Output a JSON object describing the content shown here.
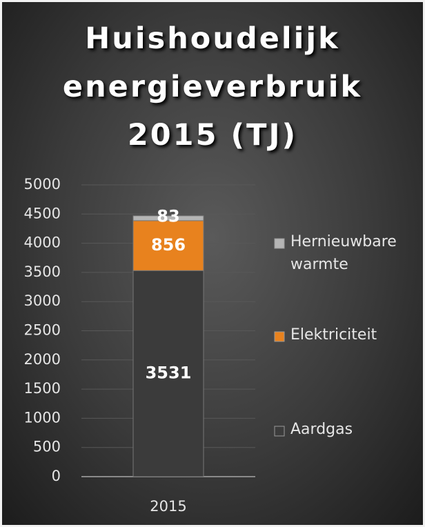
{
  "chart_data": {
    "type": "stacked_bar",
    "title": "Huishoudelijk energieverbruik 2015 (TJ)",
    "categories": [
      "2015"
    ],
    "series": [
      {
        "name": "Aardgas",
        "color": "#3b3b3b",
        "values": [
          3531
        ]
      },
      {
        "name": "Elektriciteit",
        "color": "#e8821e",
        "values": [
          856
        ]
      },
      {
        "name": "Hernieuwbare warmte",
        "color": "#b5b5b5",
        "values": [
          83
        ]
      }
    ],
    "ylim": [
      0,
      5000
    ],
    "yticks": [
      0,
      500,
      1000,
      1500,
      2000,
      2500,
      3000,
      3500,
      4000,
      4500,
      5000
    ],
    "grid": true,
    "legend": "right"
  }
}
